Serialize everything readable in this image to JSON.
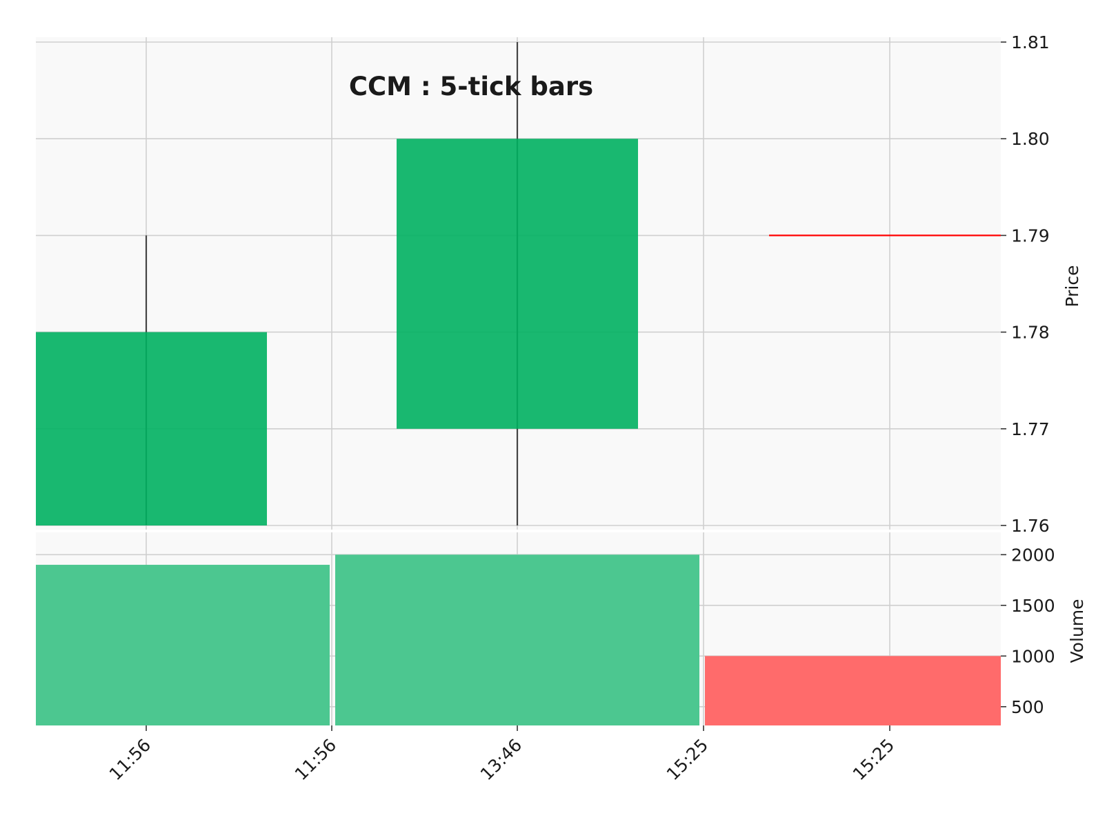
{
  "chart_data": {
    "type": "candlestick",
    "title": "CCM : 5-tick bars",
    "x_tick_labels": [
      "11:56",
      "11:56",
      "13:46",
      "15:25",
      "15:25"
    ],
    "candles": [
      {
        "open": 1.76,
        "high": 1.79,
        "low": 1.76,
        "close": 1.78,
        "volume": 1900
      },
      {
        "open": 1.77,
        "high": 1.81,
        "low": 1.76,
        "close": 1.8,
        "volume": 2000
      },
      {
        "open": 1.79,
        "high": 1.79,
        "low": 1.79,
        "close": 1.79,
        "volume": 1000
      }
    ],
    "price_panel": {
      "ylabel": "Price",
      "ylim": [
        1.76,
        1.81
      ],
      "yticks": [
        "1.76",
        "1.77",
        "1.78",
        "1.79",
        "1.80",
        "1.81"
      ],
      "ytick_values": [
        1.76,
        1.77,
        1.78,
        1.79,
        1.8,
        1.81
      ]
    },
    "volume_panel": {
      "ylabel": "Volume",
      "ylim": [
        315,
        2220
      ],
      "yticks": [
        "500",
        "1000",
        "1500",
        "2000"
      ],
      "ytick_values": [
        500,
        1000,
        1500,
        2000
      ]
    },
    "grid": true,
    "y_axis_side": "right",
    "colors": {
      "up": "#00b060",
      "down": "#ff0000",
      "wick": "#444444",
      "volume_up": "#4cc790",
      "volume_down": "#ff6b6b",
      "panel_background": "#f9f9f9"
    }
  }
}
